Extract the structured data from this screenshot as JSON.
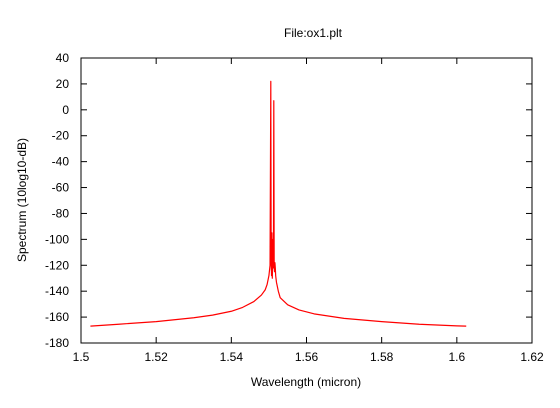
{
  "chart_data": {
    "type": "line",
    "title": "File:ox1.plt",
    "xlabel": "Wavelength (micron)",
    "ylabel": "Spectrum (10log10-dB)",
    "xlim": [
      1.5,
      1.62
    ],
    "ylim": [
      -180,
      40
    ],
    "xticks": [
      1.5,
      1.52,
      1.54,
      1.56,
      1.58,
      1.6,
      1.62
    ],
    "xtick_labels": [
      "1.5",
      "1.52",
      "1.54",
      "1.56",
      "1.58",
      "1.6",
      "1.62"
    ],
    "yticks": [
      -180,
      -160,
      -140,
      -120,
      -100,
      -80,
      -60,
      -40,
      -20,
      0,
      20,
      40
    ],
    "ytick_labels": [
      "-180",
      "-160",
      "-140",
      "-120",
      "-100",
      "-80",
      "-60",
      "-40",
      "-20",
      "0",
      "20",
      "40"
    ],
    "grid": false,
    "legend": "none",
    "series": [
      {
        "color": "#ff0000",
        "x": [
          1.5025,
          1.51,
          1.52,
          1.53,
          1.535,
          1.54,
          1.543,
          1.546,
          1.548,
          1.549,
          1.5495,
          1.55,
          1.5503,
          1.5505,
          1.5506,
          1.5507,
          1.5508,
          1.5509,
          1.551,
          1.5511,
          1.5512,
          1.5513,
          1.5514,
          1.5515,
          1.5516,
          1.5517,
          1.5518,
          1.552,
          1.5525,
          1.553,
          1.555,
          1.558,
          1.562,
          1.57,
          1.58,
          1.59,
          1.6,
          1.6025
        ],
        "y": [
          -167,
          -165.5,
          -163.5,
          -160.5,
          -158.5,
          -155.5,
          -152.5,
          -148,
          -143,
          -139,
          -135,
          -128,
          -120,
          22,
          -118,
          -128,
          -95,
          -130,
          -118,
          -100,
          -122,
          7,
          -120,
          -125,
          -118,
          -122,
          -128,
          -133,
          -140,
          -145,
          -150.5,
          -154.5,
          -157.5,
          -161,
          -163.5,
          -165.5,
          -166.8,
          -167
        ]
      }
    ]
  }
}
